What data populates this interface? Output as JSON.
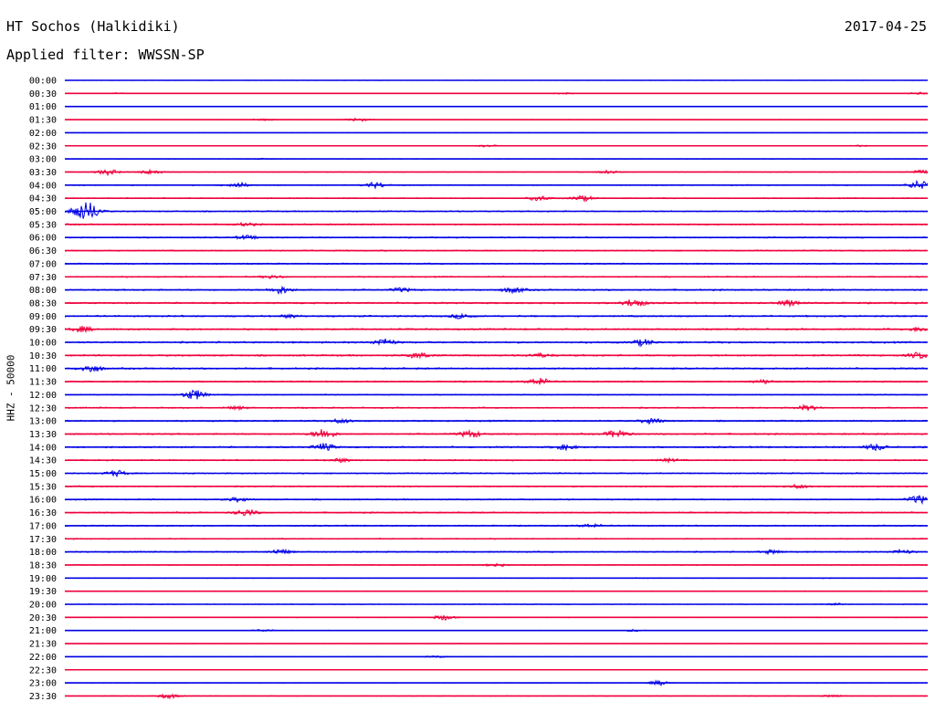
{
  "header": {
    "station": "HT Sochos (Halkidiki)",
    "date": "2017-04-25",
    "filter": "Applied filter: WWSSN-SP"
  },
  "chart_data": {
    "type": "line",
    "ylabel": "HHZ - 50000",
    "colors": {
      "even": "#0000e6",
      "odd": "#f0003c"
    },
    "rows": [
      {
        "label": "00:00",
        "amp": 0.12,
        "events": []
      },
      {
        "label": "00:30",
        "amp": 0.15,
        "events": [
          [
            0.06,
            0.6
          ],
          [
            0.58,
            0.8
          ],
          [
            0.99,
            1.2
          ]
        ]
      },
      {
        "label": "01:00",
        "amp": 0.08,
        "events": []
      },
      {
        "label": "01:30",
        "amp": 0.12,
        "events": [
          [
            0.23,
            1.0
          ],
          [
            0.34,
            1.8
          ]
        ]
      },
      {
        "label": "02:00",
        "amp": 0.12,
        "events": []
      },
      {
        "label": "02:30",
        "amp": 0.18,
        "events": [
          [
            0.49,
            1.0
          ],
          [
            0.92,
            0.8
          ]
        ]
      },
      {
        "label": "03:00",
        "amp": 0.18,
        "events": [
          [
            0.23,
            0.5
          ]
        ]
      },
      {
        "label": "03:30",
        "amp": 0.3,
        "events": [
          [
            0.05,
            3.0
          ],
          [
            0.1,
            2.5
          ],
          [
            0.63,
            1.6
          ],
          [
            0.99,
            2.0
          ]
        ]
      },
      {
        "label": "04:00",
        "amp": 0.45,
        "events": [
          [
            0.2,
            2.8
          ],
          [
            0.36,
            3.0
          ],
          [
            0.99,
            4.5
          ]
        ]
      },
      {
        "label": "04:30",
        "amp": 0.45,
        "events": [
          [
            0.55,
            2.4
          ],
          [
            0.6,
            2.8
          ]
        ]
      },
      {
        "label": "05:00",
        "amp": 0.55,
        "events": [
          [
            0.02,
            8.0
          ],
          [
            0.03,
            6.0
          ]
        ]
      },
      {
        "label": "05:30",
        "amp": 0.6,
        "events": [
          [
            0.21,
            1.6
          ]
        ]
      },
      {
        "label": "06:00",
        "amp": 0.55,
        "events": [
          [
            0.21,
            2.0
          ]
        ]
      },
      {
        "label": "06:30",
        "amp": 0.55,
        "events": []
      },
      {
        "label": "07:00",
        "amp": 0.55,
        "events": []
      },
      {
        "label": "07:30",
        "amp": 0.55,
        "events": [
          [
            0.24,
            1.6
          ]
        ]
      },
      {
        "label": "08:00",
        "amp": 0.65,
        "events": [
          [
            0.25,
            3.8
          ],
          [
            0.39,
            2.0
          ],
          [
            0.52,
            3.0
          ]
        ]
      },
      {
        "label": "08:30",
        "amp": 0.7,
        "events": [
          [
            0.66,
            4.5
          ],
          [
            0.84,
            3.2
          ]
        ]
      },
      {
        "label": "09:00",
        "amp": 0.7,
        "events": [
          [
            0.46,
            2.4
          ],
          [
            0.26,
            1.6
          ]
        ]
      },
      {
        "label": "09:30",
        "amp": 0.7,
        "events": [
          [
            0.02,
            2.8
          ],
          [
            0.99,
            2.2
          ]
        ]
      },
      {
        "label": "10:00",
        "amp": 0.75,
        "events": [
          [
            0.37,
            3.8
          ],
          [
            0.67,
            3.2
          ]
        ]
      },
      {
        "label": "10:30",
        "amp": 0.75,
        "events": [
          [
            0.41,
            3.0
          ],
          [
            0.55,
            2.0
          ],
          [
            0.99,
            3.0
          ]
        ]
      },
      {
        "label": "11:00",
        "amp": 0.7,
        "events": [
          [
            0.03,
            4.0
          ]
        ]
      },
      {
        "label": "11:30",
        "amp": 0.6,
        "events": [
          [
            0.55,
            3.8
          ],
          [
            0.81,
            2.0
          ]
        ]
      },
      {
        "label": "12:00",
        "amp": 0.45,
        "events": [
          [
            0.15,
            5.5
          ]
        ]
      },
      {
        "label": "12:30",
        "amp": 0.6,
        "events": [
          [
            0.86,
            2.5
          ],
          [
            0.2,
            1.5
          ]
        ]
      },
      {
        "label": "13:00",
        "amp": 0.65,
        "events": [
          [
            0.68,
            2.8
          ],
          [
            0.32,
            2.0
          ]
        ]
      },
      {
        "label": "13:30",
        "amp": 0.65,
        "events": [
          [
            0.3,
            5.5
          ],
          [
            0.47,
            3.8
          ],
          [
            0.64,
            4.2
          ]
        ]
      },
      {
        "label": "14:00",
        "amp": 0.7,
        "events": [
          [
            0.3,
            3.8
          ],
          [
            0.58,
            2.5
          ],
          [
            0.94,
            3.2
          ]
        ]
      },
      {
        "label": "14:30",
        "amp": 0.55,
        "events": [
          [
            0.32,
            2.0
          ],
          [
            0.7,
            1.6
          ]
        ]
      },
      {
        "label": "15:00",
        "amp": 0.55,
        "events": [
          [
            0.06,
            3.0
          ]
        ]
      },
      {
        "label": "15:30",
        "amp": 0.55,
        "events": [
          [
            0.85,
            1.8
          ]
        ]
      },
      {
        "label": "16:00",
        "amp": 0.6,
        "events": [
          [
            0.2,
            2.0
          ],
          [
            0.99,
            4.0
          ]
        ]
      },
      {
        "label": "16:30",
        "amp": 0.6,
        "events": [
          [
            0.21,
            3.5
          ]
        ]
      },
      {
        "label": "17:00",
        "amp": 0.55,
        "events": [
          [
            0.61,
            1.8
          ]
        ]
      },
      {
        "label": "17:30",
        "amp": 0.5,
        "events": []
      },
      {
        "label": "18:00",
        "amp": 0.55,
        "events": [
          [
            0.25,
            2.6
          ],
          [
            0.82,
            2.0
          ],
          [
            0.97,
            2.2
          ]
        ]
      },
      {
        "label": "18:30",
        "amp": 0.4,
        "events": [
          [
            0.5,
            1.6
          ]
        ]
      },
      {
        "label": "19:00",
        "amp": 0.35,
        "events": []
      },
      {
        "label": "19:30",
        "amp": 0.3,
        "events": []
      },
      {
        "label": "20:00",
        "amp": 0.3,
        "events": [
          [
            0.89,
            1.2
          ]
        ]
      },
      {
        "label": "20:30",
        "amp": 0.3,
        "events": [
          [
            0.44,
            2.8
          ]
        ]
      },
      {
        "label": "21:00",
        "amp": 0.25,
        "events": [
          [
            0.23,
            1.2
          ],
          [
            0.66,
            1.0
          ]
        ]
      },
      {
        "label": "21:30",
        "amp": 0.2,
        "events": []
      },
      {
        "label": "22:00",
        "amp": 0.15,
        "events": [
          [
            0.43,
            1.0
          ]
        ]
      },
      {
        "label": "22:30",
        "amp": 0.15,
        "events": []
      },
      {
        "label": "23:00",
        "amp": 0.2,
        "events": [
          [
            0.69,
            2.5
          ]
        ]
      },
      {
        "label": "23:30",
        "amp": 0.25,
        "events": [
          [
            0.12,
            2.5
          ],
          [
            0.89,
            1.2
          ]
        ]
      }
    ]
  }
}
